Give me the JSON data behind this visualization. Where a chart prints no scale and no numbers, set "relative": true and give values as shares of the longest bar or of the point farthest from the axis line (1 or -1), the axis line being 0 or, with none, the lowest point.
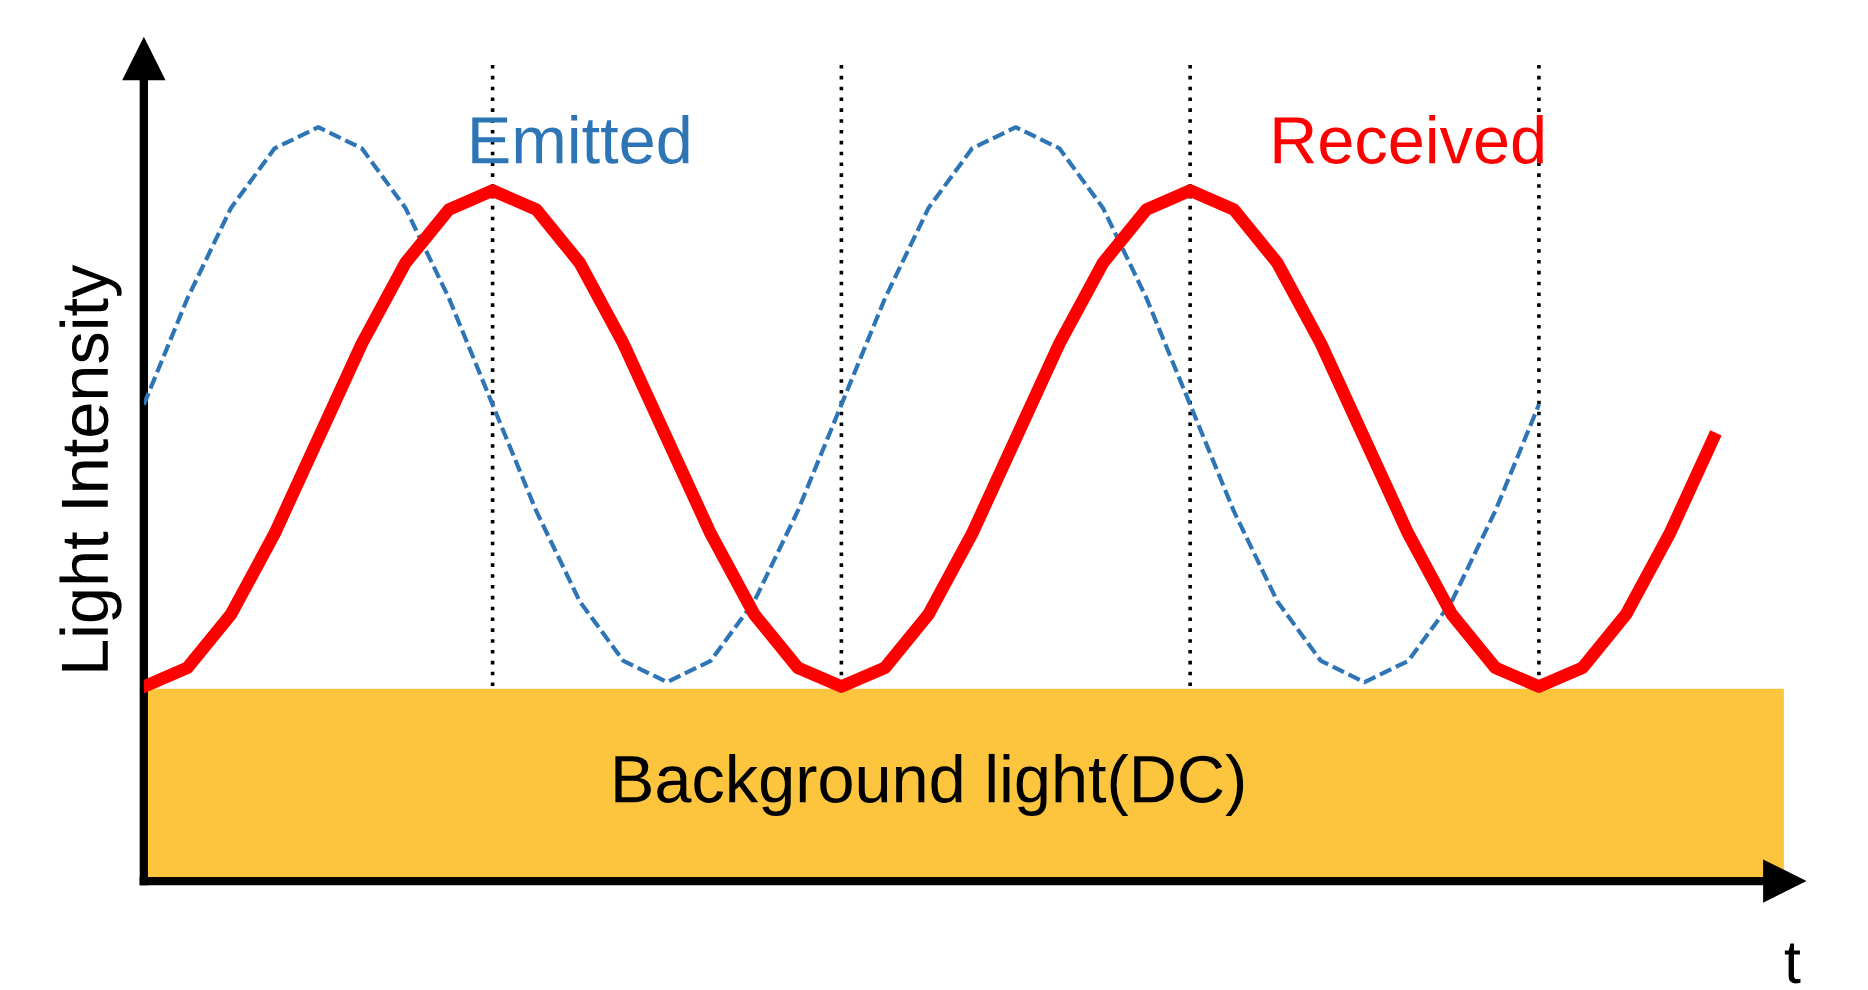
{
  "chart_data": {
    "type": "line",
    "relative": true,
    "xlabel": "t",
    "ylabel": "Light Intensity",
    "legend": false,
    "grid": "x",
    "marker": "none",
    "categories": [
      null,
      null,
      null,
      null,
      null,
      null,
      null,
      null,
      null,
      null,
      null,
      null,
      null,
      null,
      null,
      null,
      null,
      null,
      null,
      null,
      null,
      null,
      null,
      null,
      null,
      null,
      null,
      null,
      null,
      null,
      null,
      null,
      null,
      null,
      null,
      null,
      null
    ],
    "series": [
      {
        "name": "Emitted",
        "color": "#2e75b6",
        "line_style": "dashed",
        "values": [
          0.632,
          0.773,
          0.893,
          0.972,
          1.0,
          0.972,
          0.893,
          0.773,
          0.632,
          0.491,
          0.371,
          0.292,
          0.264,
          0.292,
          0.371,
          0.491,
          0.632,
          0.773,
          0.893,
          0.972,
          1.0,
          0.972,
          0.893,
          0.773,
          0.632,
          0.491,
          0.371,
          0.292,
          0.264,
          0.292,
          0.371,
          0.491,
          0.632,
          null,
          null,
          null,
          null
        ]
      },
      {
        "name": "Received",
        "color": "#ff0000",
        "line_style": "solid",
        "values": [
          0.258,
          0.283,
          0.354,
          0.461,
          0.587,
          0.713,
          0.82,
          0.891,
          0.916,
          0.891,
          0.82,
          0.713,
          0.587,
          0.461,
          0.354,
          0.283,
          0.258,
          0.283,
          0.354,
          0.461,
          0.587,
          0.713,
          0.82,
          0.891,
          0.916,
          0.891,
          0.82,
          0.713,
          0.587,
          0.461,
          0.354,
          0.283,
          0.258,
          0.283,
          0.354,
          0.461,
          0.587
        ]
      }
    ],
    "bands": [
      {
        "axis": "y",
        "from": 0,
        "to": 0.255,
        "label": "Background light(DC)",
        "color": "#fdc43d"
      }
    ]
  }
}
